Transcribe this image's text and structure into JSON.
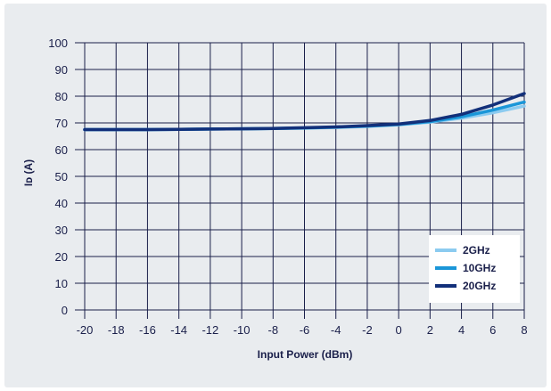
{
  "chart_data": {
    "type": "line",
    "xlabel": "Input Power (dBm)",
    "ylabel": "Iᴅ (A)",
    "xlim": [
      -20,
      8
    ],
    "ylim": [
      0,
      100
    ],
    "xticks": [
      -20,
      -18,
      -16,
      -14,
      -12,
      -10,
      -8,
      -6,
      -4,
      -2,
      0,
      2,
      4,
      6,
      8
    ],
    "yticks": [
      0,
      10,
      20,
      30,
      40,
      50,
      60,
      70,
      80,
      90,
      100
    ],
    "grid": true,
    "legend_position": "bottom-right",
    "x": [
      -20,
      -18,
      -16,
      -14,
      -12,
      -10,
      -8,
      -6,
      -4,
      -2,
      0,
      2,
      4,
      6,
      8
    ],
    "series": [
      {
        "name": "2GHz",
        "color": "#8ccbf0",
        "values": [
          67.5,
          67.5,
          67.5,
          67.6,
          67.7,
          67.8,
          67.9,
          68.1,
          68.3,
          68.7,
          69.3,
          70.3,
          71.8,
          73.8,
          76.3
        ]
      },
      {
        "name": "10GHz",
        "color": "#1a96d8",
        "values": [
          67.5,
          67.5,
          67.5,
          67.6,
          67.7,
          67.8,
          67.9,
          68.1,
          68.4,
          68.8,
          69.4,
          70.5,
          72.3,
          74.8,
          77.8
        ]
      },
      {
        "name": "20GHz",
        "color": "#12307a",
        "values": [
          67.5,
          67.5,
          67.5,
          67.6,
          67.7,
          67.8,
          67.9,
          68.2,
          68.5,
          69.0,
          69.6,
          70.9,
          73.2,
          76.7,
          81.0
        ]
      }
    ]
  }
}
